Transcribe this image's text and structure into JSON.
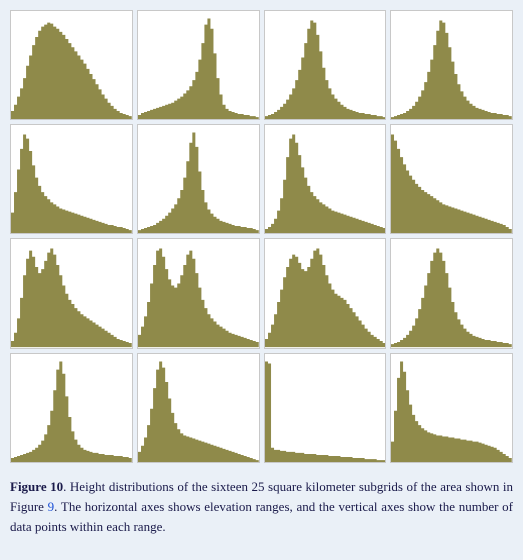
{
  "figure": {
    "label": "Figure 10",
    "caption_pre": ". Height distributions of the sixteen 25 square kilometer subgrids of the area shown in Figure ",
    "ref_link": "9",
    "caption_post": ". The horizontal axes shows elevation ranges, and the vertical axes show the number of data points within each range."
  },
  "style": {
    "fill_color": "#8f8a4a",
    "panel_bg": "#ffffff",
    "panel_border": "#c8c8c8",
    "page_bg": "#eaf0f7",
    "caption_color": "#1a1a4a",
    "link_color": "#1a4fd6",
    "caption_fontsize": 13,
    "grid_cols": 4,
    "grid_rows": 4,
    "grid_gap": 4
  },
  "panels": [
    {
      "type": "histogram",
      "ylim": [
        0,
        100
      ],
      "values": [
        8,
        14,
        22,
        30,
        40,
        52,
        62,
        72,
        80,
        86,
        90,
        92,
        94,
        93,
        90,
        88,
        85,
        82,
        78,
        74,
        70,
        66,
        62,
        58,
        54,
        49,
        44,
        39,
        34,
        29,
        24,
        20,
        16,
        13,
        10,
        8,
        6,
        5,
        4,
        3
      ]
    },
    {
      "type": "histogram",
      "ylim": [
        0,
        100
      ],
      "values": [
        4,
        6,
        7,
        8,
        9,
        10,
        11,
        12,
        13,
        14,
        15,
        16,
        18,
        20,
        22,
        25,
        28,
        32,
        38,
        46,
        58,
        74,
        92,
        98,
        88,
        64,
        40,
        24,
        14,
        10,
        8,
        7,
        6,
        5,
        5,
        4,
        4,
        3,
        3,
        2
      ]
    },
    {
      "type": "histogram",
      "ylim": [
        0,
        100
      ],
      "values": [
        3,
        4,
        5,
        7,
        9,
        12,
        15,
        19,
        24,
        30,
        38,
        48,
        60,
        74,
        88,
        96,
        94,
        82,
        66,
        50,
        38,
        30,
        24,
        20,
        17,
        14,
        12,
        10,
        9,
        8,
        7,
        6,
        6,
        5,
        5,
        4,
        4,
        3,
        3,
        2
      ]
    },
    {
      "type": "histogram",
      "ylim": [
        0,
        100
      ],
      "values": [
        2,
        3,
        4,
        5,
        6,
        8,
        10,
        13,
        17,
        22,
        28,
        36,
        46,
        58,
        72,
        86,
        96,
        94,
        84,
        70,
        56,
        44,
        34,
        27,
        22,
        18,
        15,
        13,
        11,
        10,
        9,
        8,
        7,
        6,
        6,
        5,
        5,
        4,
        4,
        3
      ]
    },
    {
      "type": "histogram",
      "ylim": [
        0,
        100
      ],
      "values": [
        20,
        40,
        62,
        82,
        96,
        92,
        80,
        66,
        54,
        46,
        40,
        36,
        33,
        30,
        28,
        26,
        24,
        23,
        22,
        21,
        20,
        19,
        18,
        17,
        16,
        15,
        14,
        13,
        12,
        11,
        10,
        9,
        8,
        8,
        7,
        6,
        6,
        5,
        4,
        3
      ]
    },
    {
      "type": "histogram",
      "ylim": [
        0,
        100
      ],
      "values": [
        3,
        4,
        5,
        6,
        7,
        8,
        10,
        12,
        14,
        17,
        20,
        24,
        28,
        34,
        42,
        54,
        70,
        88,
        98,
        84,
        60,
        42,
        30,
        23,
        19,
        16,
        14,
        12,
        11,
        10,
        9,
        8,
        7,
        7,
        6,
        6,
        5,
        5,
        4,
        3
      ]
    },
    {
      "type": "histogram",
      "ylim": [
        0,
        100
      ],
      "values": [
        4,
        6,
        9,
        14,
        22,
        34,
        52,
        74,
        92,
        96,
        88,
        76,
        64,
        54,
        46,
        40,
        36,
        33,
        30,
        28,
        26,
        24,
        22,
        21,
        20,
        19,
        18,
        17,
        16,
        15,
        14,
        13,
        12,
        11,
        10,
        9,
        8,
        7,
        6,
        5
      ]
    },
    {
      "type": "histogram",
      "ylim": [
        0,
        100
      ],
      "values": [
        96,
        90,
        82,
        74,
        67,
        61,
        56,
        52,
        48,
        45,
        42,
        40,
        38,
        36,
        34,
        32,
        30,
        28,
        27,
        26,
        25,
        24,
        23,
        22,
        21,
        20,
        19,
        18,
        17,
        16,
        15,
        14,
        13,
        12,
        11,
        10,
        9,
        8,
        6,
        4
      ]
    },
    {
      "type": "histogram",
      "ylim": [
        0,
        100
      ],
      "values": [
        6,
        14,
        28,
        48,
        70,
        86,
        94,
        88,
        78,
        72,
        76,
        84,
        92,
        96,
        90,
        80,
        70,
        60,
        52,
        46,
        42,
        38,
        35,
        32,
        30,
        28,
        26,
        24,
        22,
        20,
        18,
        16,
        14,
        12,
        10,
        8,
        7,
        6,
        5,
        4
      ]
    },
    {
      "type": "histogram",
      "ylim": [
        0,
        100
      ],
      "values": [
        12,
        20,
        30,
        44,
        62,
        80,
        94,
        96,
        88,
        76,
        66,
        60,
        58,
        62,
        70,
        80,
        90,
        94,
        86,
        72,
        58,
        46,
        38,
        32,
        28,
        25,
        22,
        20,
        18,
        16,
        14,
        13,
        12,
        11,
        10,
        9,
        8,
        7,
        6,
        5
      ]
    },
    {
      "type": "histogram",
      "ylim": [
        0,
        100
      ],
      "values": [
        8,
        14,
        22,
        32,
        44,
        56,
        68,
        78,
        86,
        90,
        88,
        82,
        76,
        74,
        78,
        86,
        94,
        96,
        90,
        80,
        70,
        62,
        56,
        52,
        50,
        48,
        46,
        42,
        38,
        34,
        30,
        26,
        22,
        18,
        15,
        12,
        10,
        8,
        6,
        4
      ]
    },
    {
      "type": "histogram",
      "ylim": [
        0,
        100
      ],
      "values": [
        3,
        4,
        5,
        7,
        9,
        12,
        16,
        21,
        28,
        37,
        48,
        60,
        72,
        84,
        92,
        96,
        92,
        84,
        72,
        58,
        44,
        34,
        27,
        22,
        18,
        15,
        13,
        11,
        10,
        9,
        8,
        7,
        7,
        6,
        6,
        5,
        5,
        4,
        4,
        3
      ]
    },
    {
      "type": "histogram",
      "ylim": [
        0,
        100
      ],
      "values": [
        4,
        5,
        6,
        7,
        8,
        9,
        10,
        12,
        14,
        17,
        21,
        27,
        36,
        50,
        70,
        90,
        98,
        86,
        64,
        44,
        30,
        22,
        17,
        14,
        12,
        11,
        10,
        9,
        9,
        8,
        8,
        7,
        7,
        7,
        6,
        6,
        6,
        5,
        5,
        4
      ]
    },
    {
      "type": "histogram",
      "ylim": [
        0,
        100
      ],
      "values": [
        10,
        16,
        24,
        36,
        52,
        72,
        90,
        98,
        92,
        78,
        62,
        48,
        38,
        32,
        28,
        26,
        25,
        24,
        23,
        22,
        21,
        20,
        19,
        18,
        17,
        16,
        15,
        14,
        13,
        12,
        11,
        10,
        9,
        8,
        7,
        6,
        5,
        4,
        3,
        2
      ]
    },
    {
      "type": "histogram",
      "ylim": [
        0,
        100
      ],
      "values": [
        98,
        96,
        14,
        12,
        12,
        11,
        11,
        10,
        10,
        10,
        9,
        9,
        9,
        8,
        8,
        8,
        8,
        7,
        7,
        7,
        7,
        6,
        6,
        6,
        6,
        5,
        5,
        5,
        5,
        4,
        4,
        4,
        4,
        3,
        3,
        3,
        3,
        2,
        2,
        2
      ]
    },
    {
      "type": "histogram",
      "ylim": [
        0,
        100
      ],
      "values": [
        20,
        50,
        82,
        98,
        88,
        70,
        56,
        46,
        40,
        36,
        33,
        31,
        29,
        28,
        27,
        26,
        26,
        25,
        25,
        24,
        24,
        23,
        23,
        22,
        22,
        21,
        21,
        20,
        20,
        19,
        18,
        17,
        16,
        15,
        14,
        12,
        10,
        8,
        6,
        4
      ]
    }
  ]
}
